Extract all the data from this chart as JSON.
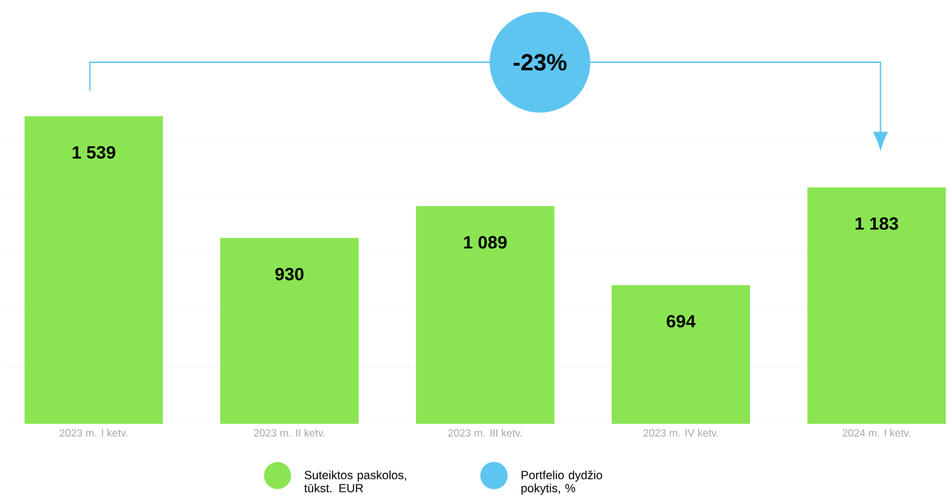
{
  "chart_data": {
    "type": "bar",
    "categories": [
      "2023 m. I ketv.",
      "2023 m. II ketv.",
      "2023 m. III ketv.",
      "2023 m. IV ketv.",
      "2024 m. I ketv."
    ],
    "series": [
      {
        "name": "Suteiktos paskolos, tūkst. EUR",
        "color": "#8be553",
        "values": [
          1539,
          930,
          1089,
          694,
          1183
        ],
        "value_labels": [
          "1 539",
          "930",
          "1 089",
          "694",
          "1 183"
        ]
      },
      {
        "name": "Portfelio dydžio pokytis, %",
        "type": "scatter",
        "marker": "circle",
        "color": "#5dc5f0",
        "values": [
          null,
          null,
          null,
          null,
          null
        ]
      }
    ],
    "yticks": [
      {
        "value": 0,
        "label": null
      },
      {
        "value": 284,
        "label": null
      },
      {
        "value": 568,
        "label": null
      },
      {
        "value": 852,
        "label": null
      },
      {
        "value": 1136,
        "label": null
      },
      {
        "value": 1420,
        "label": null
      }
    ],
    "grid": "y",
    "tick_labels": "x",
    "legend": "bottom",
    "annotations": [
      "-23%"
    ]
  }
}
